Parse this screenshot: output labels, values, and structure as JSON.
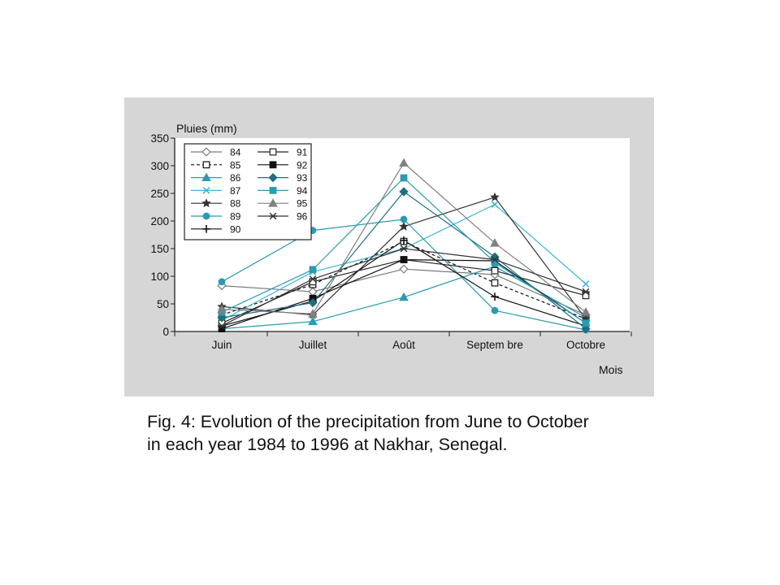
{
  "caption": {
    "line1": "Fig. 4: Evolution of the precipitation from June to October",
    "line2": "in each year 1984 to 1996 at Nakhar, Senegal."
  },
  "chart_data": {
    "type": "line",
    "ylabel": "Pluies (mm)",
    "xlabel": "Mois",
    "categories": [
      "Juin",
      "Juillet",
      "Août",
      "Septem bre",
      "Octobre"
    ],
    "ylim": [
      0,
      350
    ],
    "yticks": [
      0,
      50,
      100,
      150,
      200,
      250,
      300,
      350
    ],
    "grid": false,
    "legend_position": "top-left",
    "series": [
      {
        "name": "84",
        "values": [
          83,
          72,
          113,
          103,
          30
        ],
        "color": "#7a7a7a",
        "marker": "diamond-open",
        "dash": "solid"
      },
      {
        "name": "85",
        "values": [
          30,
          85,
          163,
          88,
          23
        ],
        "color": "#111111",
        "marker": "square-open",
        "dash": "dashed"
      },
      {
        "name": "86",
        "values": [
          5,
          18,
          62,
          118,
          25
        ],
        "color": "#2a9bb3",
        "marker": "triangle",
        "dash": "solid"
      },
      {
        "name": "87",
        "values": [
          20,
          108,
          150,
          230,
          86
        ],
        "color": "#3fb7d4",
        "marker": "x",
        "dash": "solid"
      },
      {
        "name": "88",
        "values": [
          45,
          30,
          190,
          243,
          23
        ],
        "color": "#333333",
        "marker": "star",
        "dash": "solid"
      },
      {
        "name": "89",
        "values": [
          90,
          183,
          203,
          38,
          3
        ],
        "color": "#2a9bb3",
        "marker": "circle",
        "dash": "solid"
      },
      {
        "name": "90",
        "values": [
          10,
          55,
          165,
          63,
          10
        ],
        "color": "#111111",
        "marker": "plus",
        "dash": "solid"
      },
      {
        "name": "91",
        "values": [
          15,
          90,
          130,
          110,
          65
        ],
        "color": "#222222",
        "marker": "square-open",
        "dash": "solid"
      },
      {
        "name": "92",
        "values": [
          5,
          60,
          130,
          128,
          15
        ],
        "color": "#111111",
        "marker": "square",
        "dash": "solid"
      },
      {
        "name": "93",
        "values": [
          25,
          52,
          253,
          135,
          5
        ],
        "color": "#1f6f82",
        "marker": "diamond",
        "dash": "solid"
      },
      {
        "name": "94",
        "values": [
          35,
          112,
          278,
          125,
          15
        ],
        "color": "#2a9bb3",
        "marker": "square",
        "dash": "solid"
      },
      {
        "name": "95",
        "values": [
          40,
          32,
          305,
          160,
          35
        ],
        "color": "#808080",
        "marker": "triangle",
        "dash": "solid"
      },
      {
        "name": "96",
        "values": [
          10,
          95,
          150,
          130,
          72
        ],
        "color": "#333333",
        "marker": "x-bar",
        "dash": "solid"
      }
    ]
  }
}
